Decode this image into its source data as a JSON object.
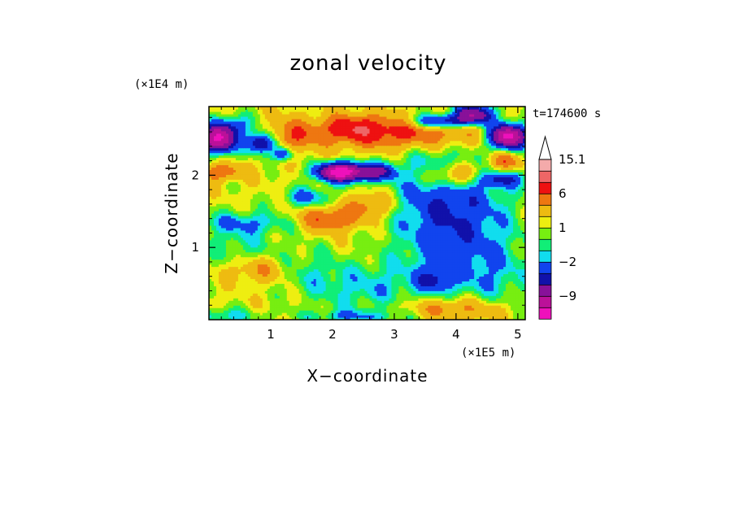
{
  "chart_data": {
    "type": "heatmap",
    "title": "zonal velocity",
    "xlabel": "X−coordinate",
    "ylabel": "Z−coordinate",
    "x_scale_label": "(×1E5 m)",
    "y_scale_label": "(×1E4 m)",
    "time_label": "t=174600 s",
    "xlim": [
      0,
      5.12
    ],
    "ylim": [
      0,
      2.95
    ],
    "x_ticks": [
      1,
      2,
      3,
      4,
      5
    ],
    "y_ticks": [
      1,
      2
    ],
    "x_tick_labels": [
      "1",
      "2",
      "3",
      "4",
      "5"
    ],
    "y_tick_labels": [
      "1",
      "2"
    ],
    "colorbar": {
      "levels": [
        -15,
        -12,
        -9,
        -6,
        -4,
        -2,
        -1,
        0,
        1,
        2,
        4,
        6,
        9,
        12,
        15.1
      ],
      "colors": [
        "#ee11bb",
        "#bb1199",
        "#881199",
        "#1111aa",
        "#1144ee",
        "#11ddee",
        "#11ee77",
        "#77ee11",
        "#eeee11",
        "#eebb11",
        "#ee7711",
        "#ee1111",
        "#ee6666",
        "#f4aaaa"
      ],
      "extend_top": true,
      "extend_top_color": "#ffffff",
      "labels": [
        "15.1",
        "6",
        "1",
        "−2",
        "−9"
      ],
      "label_values": [
        15.1,
        6,
        1,
        -2,
        -9
      ]
    },
    "field": {
      "background_value": 1.5,
      "features": [
        {
          "x": 0.15,
          "z": 2.5,
          "sx": 0.2,
          "sz": 0.13,
          "a": -14
        },
        {
          "x": 0.85,
          "z": 2.45,
          "sx": 0.16,
          "sz": 0.1,
          "a": -9
        },
        {
          "x": 1.2,
          "z": 2.3,
          "sx": 0.12,
          "sz": 0.07,
          "a": -6
        },
        {
          "x": 0.4,
          "z": 2.7,
          "sx": 0.25,
          "sz": 0.1,
          "a": -4
        },
        {
          "x": 2.15,
          "z": 2.05,
          "sx": 0.28,
          "sz": 0.09,
          "a": -16
        },
        {
          "x": 2.75,
          "z": 2.05,
          "sx": 0.2,
          "sz": 0.08,
          "a": -6
        },
        {
          "x": 3.75,
          "z": 2.75,
          "sx": 0.35,
          "sz": 0.07,
          "a": -8
        },
        {
          "x": 4.3,
          "z": 2.85,
          "sx": 0.22,
          "sz": 0.09,
          "a": -10
        },
        {
          "x": 4.85,
          "z": 2.55,
          "sx": 0.22,
          "sz": 0.12,
          "a": -15
        },
        {
          "x": 4.7,
          "z": 1.95,
          "sx": 0.3,
          "sz": 0.08,
          "a": -5
        },
        {
          "x": 1.6,
          "z": 1.7,
          "sx": 0.28,
          "sz": 0.1,
          "a": -4
        },
        {
          "x": 4.2,
          "z": 1.45,
          "sx": 0.6,
          "sz": 0.5,
          "a": -3.5
        },
        {
          "x": 3.65,
          "z": 0.55,
          "sx": 0.2,
          "sz": 0.12,
          "a": -4
        },
        {
          "x": 0.6,
          "z": 1.35,
          "sx": 0.6,
          "sz": 0.1,
          "a": -2.5
        },
        {
          "x": 2.5,
          "z": 0.45,
          "sx": 0.6,
          "sz": 0.25,
          "a": -2.8
        },
        {
          "x": 0.1,
          "z": 0.05,
          "sx": 0.5,
          "sz": 0.08,
          "a": -3
        },
        {
          "x": 2.4,
          "z": 0.05,
          "sx": 0.6,
          "sz": 0.07,
          "a": -3
        },
        {
          "x": 3.3,
          "z": 2.6,
          "sx": 0.8,
          "sz": 0.18,
          "a": 6.5
        },
        {
          "x": 2.3,
          "z": 2.65,
          "sx": 0.35,
          "sz": 0.12,
          "a": 4.5
        },
        {
          "x": 1.35,
          "z": 2.55,
          "sx": 0.3,
          "sz": 0.16,
          "a": 4
        },
        {
          "x": 0.2,
          "z": 2.05,
          "sx": 0.25,
          "sz": 0.08,
          "a": 4.5
        },
        {
          "x": 4.0,
          "z": 2.0,
          "sx": 0.35,
          "sz": 0.12,
          "a": 5.5
        },
        {
          "x": 4.8,
          "z": 2.2,
          "sx": 0.2,
          "sz": 0.09,
          "a": 4.5
        },
        {
          "x": 1.95,
          "z": 1.4,
          "sx": 0.35,
          "sz": 0.12,
          "a": 5
        },
        {
          "x": 2.65,
          "z": 1.6,
          "sx": 0.25,
          "sz": 0.12,
          "a": 4
        },
        {
          "x": 0.8,
          "z": 0.7,
          "sx": 0.35,
          "sz": 0.12,
          "a": 3
        },
        {
          "x": 3.95,
          "z": 0.15,
          "sx": 0.6,
          "sz": 0.12,
          "a": 4
        },
        {
          "x": 3.6,
          "z": 1.7,
          "sx": 0.55,
          "sz": 0.9,
          "a": -3.2
        },
        {
          "x": 0.5,
          "z": 1.1,
          "sx": 0.45,
          "sz": 0.28,
          "a": -2.2
        },
        {
          "x": 1.6,
          "z": 0.7,
          "sx": 0.35,
          "sz": 0.25,
          "a": -1.8
        },
        {
          "x": 4.6,
          "z": 0.6,
          "sx": 0.5,
          "sz": 0.35,
          "a": -2.5
        }
      ]
    }
  }
}
